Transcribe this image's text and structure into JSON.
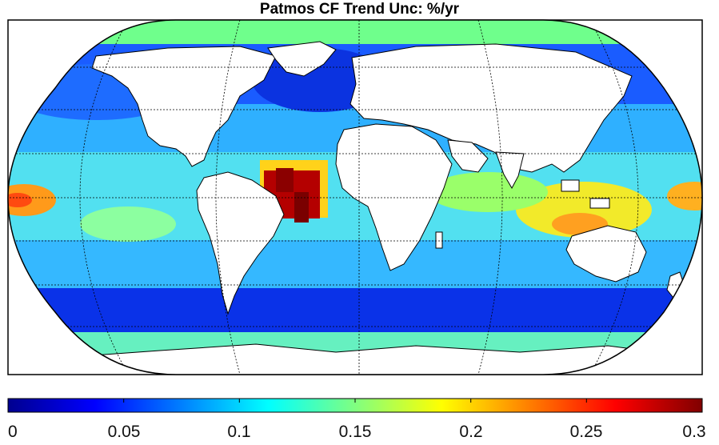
{
  "title": "Patmos CF Trend Unc: %/yr",
  "colorbar": {
    "min": 0,
    "max": 0.3,
    "colormap": "jet",
    "ticks": [
      "0",
      "0.05",
      "0.1",
      "0.15",
      "0.2",
      "0.25",
      "0.3"
    ]
  },
  "colors": {
    "frame": "#000000",
    "land": "#ffffff",
    "grid": "#000000",
    "hotspot": "#8b0000"
  },
  "chart_data": {
    "type": "heatmap",
    "title": "Patmos CF Trend Unc: %/yr",
    "projection": "Robinson (global map)",
    "value_range": [
      0,
      0.3
    ],
    "colormap": "jet",
    "grid": true,
    "colorbar_ticks": [
      0,
      0.05,
      0.1,
      0.15,
      0.2,
      0.25,
      0.3
    ],
    "colorbar_placement": "bottom",
    "regions": [
      {
        "region": "Arctic / high northern latitudes",
        "value": 0.12
      },
      {
        "region": "North Pacific",
        "value": 0.06
      },
      {
        "region": "North Atlantic",
        "value": 0.04
      },
      {
        "region": "Tropical eastern Pacific (date line)",
        "value": 0.24
      },
      {
        "region": "Equatorial Atlantic off Brazil",
        "value": 0.3
      },
      {
        "region": "Indian Ocean",
        "value": 0.12
      },
      {
        "region": "Maritime Continent / Indonesia",
        "value": 0.19
      },
      {
        "region": "Southern Ocean",
        "value": 0.03
      },
      {
        "region": "Antarctic coast",
        "value": 0.13
      }
    ]
  }
}
